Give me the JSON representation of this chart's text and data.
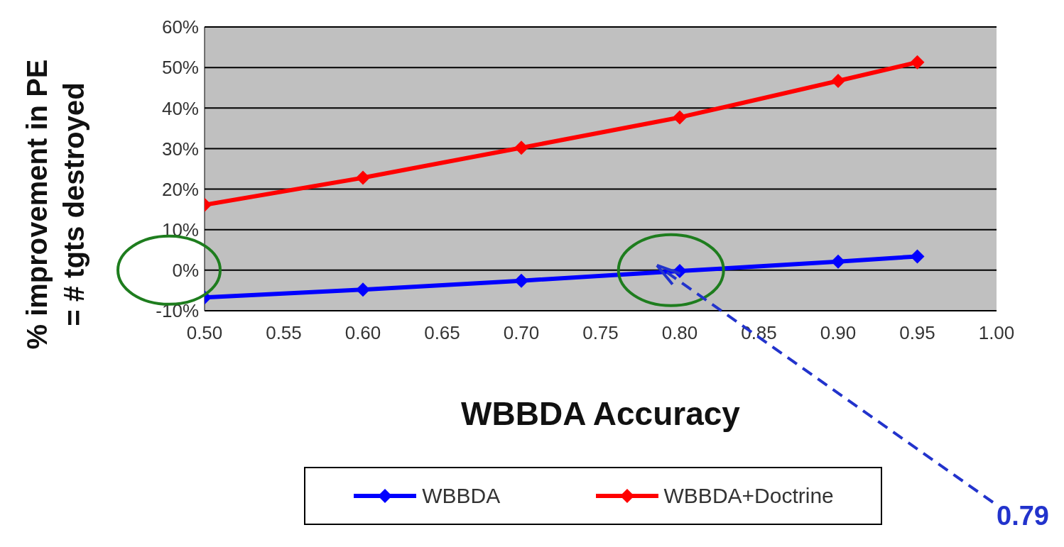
{
  "chart_data": {
    "type": "line",
    "xlabel": "WBBDA Accuracy",
    "ylabel": "% improvement in PE\n= # tgts destroyed",
    "x": [
      0.5,
      0.6,
      0.7,
      0.8,
      0.9,
      0.95
    ],
    "series": [
      {
        "name": "WBBDA",
        "color": "#0000ff",
        "values": [
          -6.7,
          -4.8,
          -2.6,
          -0.2,
          2.1,
          3.4
        ]
      },
      {
        "name": "WBBDA+Doctrine",
        "color": "#ff0000",
        "values": [
          16.1,
          22.8,
          30.2,
          37.7,
          46.7,
          51.3
        ]
      }
    ],
    "xlim": [
      0.5,
      1.0
    ],
    "xticks": [
      {
        "value": 0.5,
        "label": "0.50"
      },
      {
        "value": 0.55,
        "label": "0.55"
      },
      {
        "value": 0.6,
        "label": "0.60"
      },
      {
        "value": 0.65,
        "label": "0.65"
      },
      {
        "value": 0.7,
        "label": "0.70"
      },
      {
        "value": 0.75,
        "label": "0.75"
      },
      {
        "value": 0.8,
        "label": "0.80"
      },
      {
        "value": 0.85,
        "label": "0.85"
      },
      {
        "value": 0.9,
        "label": "0.90"
      },
      {
        "value": 0.95,
        "label": "0.95"
      },
      {
        "value": 1.0,
        "label": "1.00"
      }
    ],
    "ylim": [
      -10,
      60
    ],
    "yticks": [
      {
        "value": -10,
        "label": "-10%"
      },
      {
        "value": 0,
        "label": "0%"
      },
      {
        "value": 10,
        "label": "10%"
      },
      {
        "value": 20,
        "label": "20%"
      },
      {
        "value": 30,
        "label": "30%"
      },
      {
        "value": 40,
        "label": "40%"
      },
      {
        "value": 50,
        "label": "50%"
      },
      {
        "value": 60,
        "label": "60%"
      }
    ],
    "annotations": [
      "0.79"
    ],
    "grid": "y",
    "legend": "bottom",
    "marker": "diamond",
    "line_style": "solid"
  }
}
